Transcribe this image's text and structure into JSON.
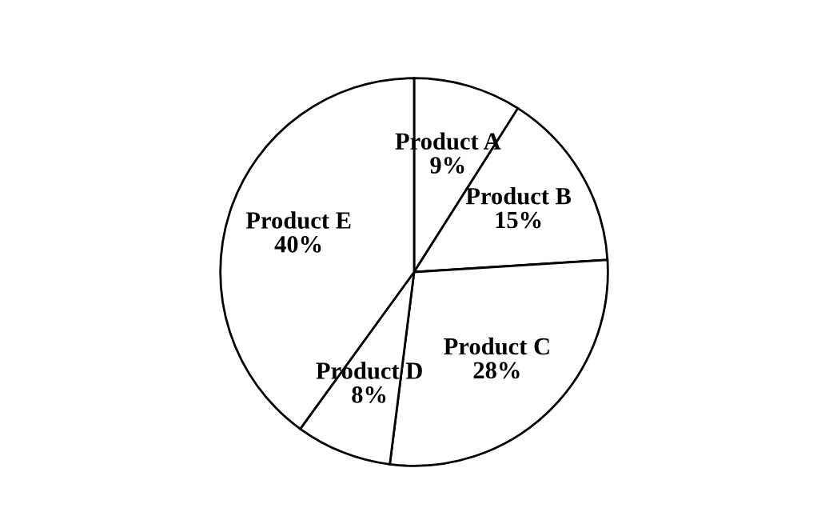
{
  "chart_data": {
    "type": "pie",
    "categories": [
      "Product A",
      "Product B",
      "Product C",
      "Product D",
      "Product E"
    ],
    "values": [
      9,
      15,
      28,
      8,
      40
    ],
    "value_labels": [
      "9%",
      "15%",
      "28%",
      "8%",
      "40%"
    ],
    "colors": [
      "#ffffff",
      "#ffffff",
      "#ffffff",
      "#ffffff",
      "#ffffff"
    ],
    "legend": false
  }
}
